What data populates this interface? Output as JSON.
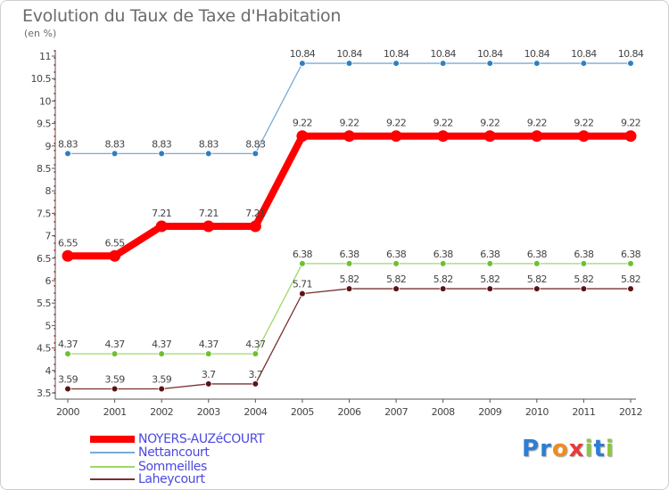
{
  "header": {
    "title": "Evolution du Taux de Taxe d'Habitation",
    "unit": "(en %)"
  },
  "logo": {
    "text": "Proxiti",
    "letters": [
      {
        "ch": "P",
        "color": "#2b7fd4"
      },
      {
        "ch": "r",
        "color": "#2b7fd4"
      },
      {
        "ch": "o",
        "color": "#f08c1a"
      },
      {
        "ch": "x",
        "color": "#e83a3a"
      },
      {
        "ch": "i",
        "color": "#8cc63f"
      },
      {
        "ch": "t",
        "color": "#2b7fd4"
      },
      {
        "ch": "i",
        "color": "#8cc63f"
      }
    ]
  },
  "chart_data": {
    "type": "line",
    "title": "Evolution du Taux de Taxe d'Habitation",
    "ylabel": "(en %)",
    "xlabel": "",
    "categories": [
      "2000",
      "2001",
      "2002",
      "2003",
      "2004",
      "2005",
      "2006",
      "2007",
      "2008",
      "2009",
      "2010",
      "2011",
      "2012"
    ],
    "ylim": [
      3.5,
      11
    ],
    "yticks": [
      "3.5",
      "4",
      "4.5",
      "5",
      "5.5",
      "6",
      "6.5",
      "7",
      "7.5",
      "8",
      "8.5",
      "9",
      "9.5",
      "10",
      "10.5",
      "11"
    ],
    "grid": false,
    "series": [
      {
        "name": "NOYERS-AUZéCOURT",
        "color": "#ff0000",
        "width": "thick",
        "values": [
          6.55,
          6.55,
          7.21,
          7.21,
          7.21,
          9.22,
          9.22,
          9.22,
          9.22,
          9.22,
          9.22,
          9.22,
          9.22
        ],
        "labels": [
          "6.55",
          "6.55",
          "7.21",
          "7.21",
          "7.21",
          "9.22",
          "9.22",
          "9.22",
          "9.22",
          "9.22",
          "9.22",
          "9.22",
          "9.22"
        ]
      },
      {
        "name": "Nettancourt",
        "color": "#7aaad6",
        "marker": "#2f7fc0",
        "values": [
          8.83,
          8.83,
          8.83,
          8.83,
          8.83,
          10.84,
          10.84,
          10.84,
          10.84,
          10.84,
          10.84,
          10.84,
          10.84
        ],
        "labels": [
          "8.83",
          "8.83",
          "8.83",
          "8.83",
          "8.83",
          "10.84",
          "10.84",
          "10.84",
          "10.84",
          "10.84",
          "10.84",
          "10.84",
          "10.84"
        ]
      },
      {
        "name": "Sommeilles",
        "color": "#9ed86b",
        "marker": "#6ec030",
        "values": [
          4.37,
          4.37,
          4.37,
          4.37,
          4.37,
          6.38,
          6.38,
          6.38,
          6.38,
          6.38,
          6.38,
          6.38,
          6.38
        ],
        "labels": [
          "4.37",
          "4.37",
          "4.37",
          "4.37",
          "4.37",
          "6.38",
          "6.38",
          "6.38",
          "6.38",
          "6.38",
          "6.38",
          "6.38",
          "6.38"
        ]
      },
      {
        "name": "Laheycourt",
        "color": "#7a3030",
        "marker": "#5a1414",
        "values": [
          3.59,
          3.59,
          3.59,
          3.7,
          3.7,
          5.71,
          5.82,
          5.82,
          5.82,
          5.82,
          5.82,
          5.82,
          5.82
        ],
        "labels": [
          "3.59",
          "3.59",
          "3.59",
          "3.7",
          "3.7",
          "5.71",
          "5.82",
          "5.82",
          "5.82",
          "5.82",
          "5.82",
          "5.82",
          "5.82"
        ]
      }
    ]
  }
}
